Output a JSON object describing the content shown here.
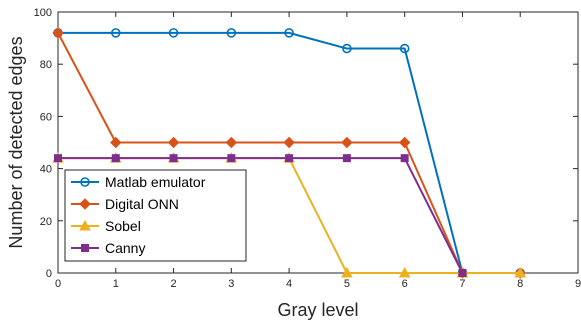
{
  "chart_data": {
    "type": "line",
    "xlabel": "Gray level",
    "ylabel": "Number of detected edges",
    "xlim": [
      0,
      9
    ],
    "ylim": [
      0,
      100
    ],
    "xticks": [
      0,
      1,
      2,
      3,
      4,
      5,
      6,
      7,
      8,
      9
    ],
    "yticks": [
      0,
      20,
      40,
      60,
      80,
      100
    ],
    "grid": false,
    "legend_position": "bottom-left",
    "series": [
      {
        "name": "Matlab emulator",
        "color": "#0072BD",
        "marker": "circle",
        "x": [
          0,
          1,
          2,
          3,
          4,
          5,
          6,
          7,
          8
        ],
        "y": [
          92,
          92,
          92,
          92,
          92,
          86,
          86,
          0,
          0
        ]
      },
      {
        "name": "Digital ONN",
        "color": "#D95319",
        "marker": "diamond",
        "x": [
          0,
          1,
          2,
          3,
          4,
          5,
          6,
          7,
          8
        ],
        "y": [
          92,
          50,
          50,
          50,
          50,
          50,
          50,
          0,
          0
        ]
      },
      {
        "name": "Sobel",
        "color": "#EDB120",
        "marker": "triangle",
        "x": [
          0,
          1,
          2,
          3,
          4,
          5,
          6,
          7,
          8
        ],
        "y": [
          44,
          44,
          44,
          44,
          44,
          0,
          0,
          0,
          0
        ]
      },
      {
        "name": "Canny",
        "color": "#7E2F8E",
        "marker": "square",
        "x": [
          0,
          1,
          2,
          3,
          4,
          5,
          6,
          7
        ],
        "y": [
          44,
          44,
          44,
          44,
          44,
          44,
          44,
          0
        ]
      }
    ]
  }
}
